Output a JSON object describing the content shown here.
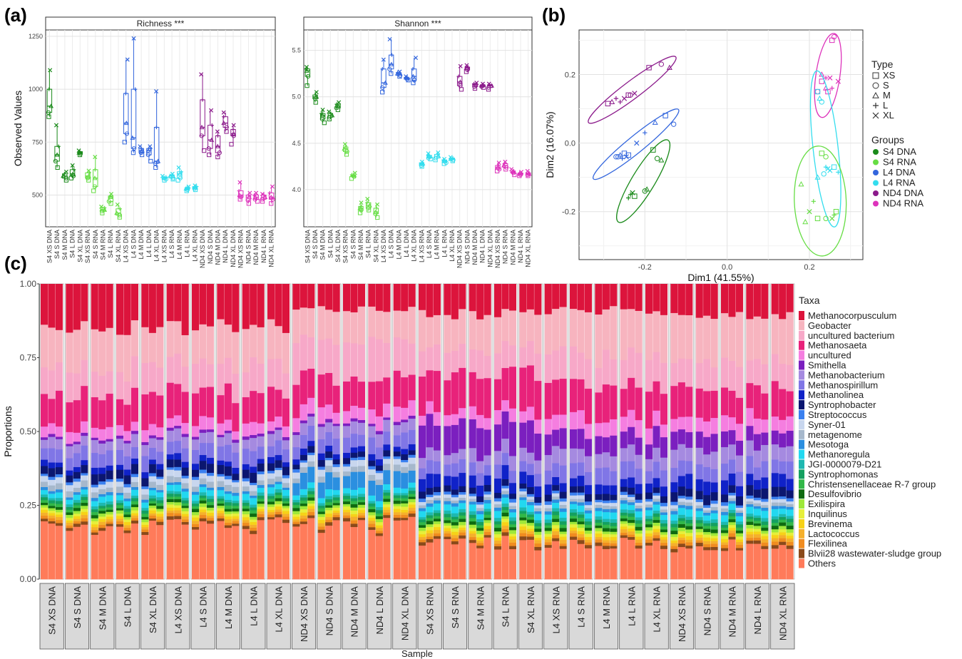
{
  "panel_labels": [
    "(a)",
    "(b)",
    "(c)"
  ],
  "colors": {
    "S4 DNA": "#1a8a1a",
    "S4 RNA": "#66dd44",
    "L4 DNA": "#3366dd",
    "L4 RNA": "#33ddee",
    "ND4 DNA": "#8b1a8b",
    "ND4 RNA": "#dd33bb"
  },
  "chart_data": [
    {
      "type": "box",
      "title": "Richness ***",
      "ylabel": "Observed Values",
      "ylim": [
        350,
        1280
      ],
      "yticks": [
        500,
        750,
        1000,
        1250
      ],
      "categories": [
        "S4 XS DNA",
        "S4 S DNA",
        "S4 M DNA",
        "S4 L DNA",
        "S4 XL DNA",
        "S4 XS RNA",
        "S4 S RNA",
        "S4 M RNA",
        "S4 L RNA",
        "S4 XL RNA",
        "L4 XS DNA",
        "L4 S DNA",
        "L4 M DNA",
        "L4 L DNA",
        "L4 XL DNA",
        "L4 XS RNA",
        "L4 S RNA",
        "L4 M RNA",
        "L4 L RNA",
        "L4 XL RNA",
        "ND4 XS DNA",
        "ND4 S DNA",
        "ND4 M DNA",
        "ND4 L DNA",
        "ND4 XL DNA",
        "ND4 XS RNA",
        "ND4 S RNA",
        "ND4 M RNA",
        "ND4 L RNA",
        "ND4 XL RNA"
      ],
      "boxes": [
        [
          870,
          890,
          920,
          1000,
          1090
        ],
        [
          630,
          660,
          690,
          730,
          830
        ],
        [
          570,
          580,
          590,
          600,
          610
        ],
        [
          580,
          590,
          600,
          620,
          640
        ],
        [
          690,
          695,
          700,
          705,
          710
        ],
        [
          570,
          580,
          590,
          605,
          615
        ],
        [
          520,
          540,
          580,
          620,
          680
        ],
        [
          415,
          425,
          430,
          440,
          445
        ],
        [
          460,
          470,
          490,
          495,
          505
        ],
        [
          395,
          405,
          415,
          435,
          455
        ],
        [
          750,
          790,
          840,
          980,
          1140
        ],
        [
          700,
          720,
          770,
          1000,
          1240
        ],
        [
          690,
          700,
          710,
          720,
          730
        ],
        [
          660,
          690,
          710,
          720,
          730
        ],
        [
          630,
          650,
          660,
          820,
          990
        ],
        [
          570,
          575,
          580,
          585,
          590
        ],
        [
          575,
          580,
          590,
          595,
          600
        ],
        [
          570,
          580,
          600,
          610,
          630
        ],
        [
          520,
          525,
          530,
          535,
          540
        ],
        [
          525,
          530,
          535,
          540,
          545
        ],
        [
          710,
          780,
          820,
          950,
          1070
        ],
        [
          690,
          720,
          760,
          830,
          900
        ],
        [
          680,
          700,
          730,
          780,
          800
        ],
        [
          800,
          820,
          840,
          870,
          890
        ],
        [
          740,
          780,
          790,
          810,
          830
        ],
        [
          480,
          490,
          500,
          520,
          560
        ],
        [
          460,
          475,
          490,
          500,
          510
        ],
        [
          470,
          480,
          490,
          500,
          510
        ],
        [
          470,
          480,
          490,
          500,
          505
        ],
        [
          460,
          480,
          490,
          510,
          540
        ]
      ],
      "groups": [
        "S4 DNA",
        "S4 DNA",
        "S4 DNA",
        "S4 DNA",
        "S4 DNA",
        "S4 RNA",
        "S4 RNA",
        "S4 RNA",
        "S4 RNA",
        "S4 RNA",
        "L4 DNA",
        "L4 DNA",
        "L4 DNA",
        "L4 DNA",
        "L4 DNA",
        "L4 RNA",
        "L4 RNA",
        "L4 RNA",
        "L4 RNA",
        "L4 RNA",
        "ND4 DNA",
        "ND4 DNA",
        "ND4 DNA",
        "ND4 DNA",
        "ND4 DNA",
        "ND4 RNA",
        "ND4 RNA",
        "ND4 RNA",
        "ND4 RNA",
        "ND4 RNA"
      ]
    },
    {
      "type": "box",
      "title": "Shannon ***",
      "ylim": [
        3.6,
        5.72
      ],
      "yticks": [
        4.0,
        4.5,
        5.0,
        5.5
      ],
      "boxes": [
        [
          5.12,
          5.22,
          5.28,
          5.3,
          5.32
        ],
        [
          4.94,
          4.98,
          5.0,
          5.02,
          5.05
        ],
        [
          4.72,
          4.76,
          4.8,
          4.82,
          4.86
        ],
        [
          4.76,
          4.78,
          4.8,
          4.82,
          4.84
        ],
        [
          4.86,
          4.88,
          4.9,
          4.92,
          4.94
        ],
        [
          4.38,
          4.41,
          4.44,
          4.46,
          4.49
        ],
        [
          4.12,
          4.14,
          4.15,
          4.16,
          4.18
        ],
        [
          3.75,
          3.78,
          3.8,
          3.82,
          3.86
        ],
        [
          3.78,
          3.8,
          3.83,
          3.86,
          3.9
        ],
        [
          3.7,
          3.74,
          3.76,
          3.8,
          3.84
        ],
        [
          5.05,
          5.1,
          5.15,
          5.3,
          5.4
        ],
        [
          5.25,
          5.3,
          5.35,
          5.45,
          5.62
        ],
        [
          5.22,
          5.23,
          5.25,
          5.26,
          5.27
        ],
        [
          5.18,
          5.19,
          5.2,
          5.21,
          5.22
        ],
        [
          5.15,
          5.18,
          5.22,
          5.3,
          5.42
        ],
        [
          4.25,
          4.26,
          4.28,
          4.29,
          4.3
        ],
        [
          4.33,
          4.34,
          4.36,
          4.37,
          4.39
        ],
        [
          4.32,
          4.34,
          4.36,
          4.38,
          4.4
        ],
        [
          4.28,
          4.29,
          4.31,
          4.32,
          4.33
        ],
        [
          4.31,
          4.32,
          4.33,
          4.34,
          4.35
        ],
        [
          5.08,
          5.12,
          5.16,
          5.22,
          5.33
        ],
        [
          5.27,
          5.29,
          5.31,
          5.32,
          5.34
        ],
        [
          5.09,
          5.11,
          5.13,
          5.14,
          5.15
        ],
        [
          5.1,
          5.11,
          5.12,
          5.13,
          5.14
        ],
        [
          5.08,
          5.1,
          5.12,
          5.13,
          5.14
        ],
        [
          4.2,
          4.22,
          4.24,
          4.26,
          4.29
        ],
        [
          4.22,
          4.24,
          4.26,
          4.28,
          4.3
        ],
        [
          4.16,
          4.18,
          4.19,
          4.2,
          4.22
        ],
        [
          4.15,
          4.16,
          4.17,
          4.18,
          4.19
        ],
        [
          4.15,
          4.16,
          4.17,
          4.18,
          4.2
        ]
      ]
    },
    {
      "type": "scatter",
      "xlabel": "Dim1 (41.55%)",
      "ylabel": "Dim2 (16.07%)",
      "xlim": [
        -0.36,
        0.33
      ],
      "ylim": [
        -0.34,
        0.33
      ],
      "xticks": [
        -0.2,
        0.0,
        0.2
      ],
      "yticks": [
        -0.2,
        0.0,
        0.2
      ],
      "legend_type_title": "Type",
      "legend_type": [
        "XS",
        "S",
        "M",
        "L",
        "XL"
      ],
      "legend_group_title": "Groups",
      "legend_group": [
        "S4 DNA",
        "S4 RNA",
        "L4 DNA",
        "L4 RNA",
        "ND4 DNA",
        "ND4 RNA"
      ],
      "clusters": [
        {
          "group": "ND4 DNA",
          "cx": -0.245,
          "cy": 0.14,
          "points": [
            [
              -0.19,
              0.22
            ],
            [
              -0.16,
              0.23
            ],
            [
              -0.14,
              0.22
            ],
            [
              -0.26,
              0.12
            ],
            [
              -0.25,
              0.13
            ],
            [
              -0.24,
              0.14
            ],
            [
              -0.235,
              0.14
            ],
            [
              -0.28,
              0.12
            ],
            [
              -0.27,
              0.13
            ],
            [
              -0.225,
              0.145
            ],
            [
              -0.29,
              0.115
            ]
          ]
        },
        {
          "group": "L4 DNA",
          "cx": -0.235,
          "cy": -0.01,
          "points": [
            [
              -0.15,
              0.08
            ],
            [
              -0.13,
              0.055
            ],
            [
              -0.175,
              0.06
            ],
            [
              -0.2,
              0.03
            ],
            [
              -0.22,
              0.0
            ],
            [
              -0.25,
              -0.03
            ],
            [
              -0.27,
              -0.04
            ],
            [
              -0.26,
              -0.035
            ],
            [
              -0.255,
              -0.045
            ],
            [
              -0.245,
              -0.04
            ],
            [
              -0.24,
              -0.035
            ],
            [
              -0.265,
              -0.04
            ]
          ]
        },
        {
          "group": "S4 DNA",
          "cx": -0.205,
          "cy": -0.12,
          "points": [
            [
              -0.18,
              -0.02
            ],
            [
              -0.17,
              -0.045
            ],
            [
              -0.16,
              -0.05
            ],
            [
              -0.235,
              -0.15
            ],
            [
              -0.23,
              -0.145
            ],
            [
              -0.225,
              -0.155
            ],
            [
              -0.2,
              -0.14
            ],
            [
              -0.195,
              -0.135
            ],
            [
              -0.24,
              -0.16
            ]
          ]
        },
        {
          "group": "ND4 RNA",
          "cx": 0.24,
          "cy": 0.2,
          "points": [
            [
              0.255,
              0.3
            ],
            [
              0.26,
              0.31
            ],
            [
              0.23,
              0.2
            ],
            [
              0.24,
              0.19
            ],
            [
              0.25,
              0.19
            ],
            [
              0.23,
              0.18
            ],
            [
              0.22,
              0.15
            ],
            [
              0.24,
              0.16
            ],
            [
              0.255,
              0.16
            ],
            [
              0.27,
              0.18
            ],
            [
              0.245,
              0.15
            ]
          ]
        },
        {
          "group": "L4 RNA",
          "cx": 0.235,
          "cy": 0.02,
          "points": [
            [
              0.22,
              0.15
            ],
            [
              0.23,
              0.12
            ],
            [
              0.225,
              0.13
            ],
            [
              0.24,
              -0.07
            ],
            [
              0.25,
              -0.08
            ],
            [
              0.26,
              -0.07
            ],
            [
              0.235,
              -0.09
            ],
            [
              0.22,
              -0.1
            ],
            [
              0.27,
              -0.085
            ],
            [
              0.245,
              -0.075
            ]
          ]
        },
        {
          "group": "S4 RNA",
          "cx": 0.225,
          "cy": -0.13,
          "points": [
            [
              0.23,
              -0.03
            ],
            [
              0.24,
              -0.04
            ],
            [
              0.18,
              -0.12
            ],
            [
              0.21,
              -0.17
            ],
            [
              0.2,
              -0.2
            ],
            [
              0.22,
              -0.22
            ],
            [
              0.24,
              -0.22
            ],
            [
              0.19,
              -0.23
            ],
            [
              0.26,
              -0.21
            ],
            [
              0.255,
              -0.22
            ],
            [
              0.265,
              -0.2
            ]
          ]
        }
      ]
    },
    {
      "type": "stacked-bar",
      "xlabel": "Sample",
      "ylabel": "Proportions",
      "ylim": [
        0,
        1
      ],
      "yticks": [
        "0.00",
        "0.25",
        "0.50",
        "0.75",
        "1.00"
      ],
      "legend_title": "Taxa",
      "categories": [
        "S4 XS DNA",
        "S4 S DNA",
        "S4 M DNA",
        "S4 L DNA",
        "S4 XL DNA",
        "L4 XS DNA",
        "L4 S DNA",
        "L4 M DNA",
        "L4 L DNA",
        "L4 XL DNA",
        "ND4 XS DNA",
        "ND4 S DNA",
        "ND4 M DNA",
        "ND4 L DNA",
        "ND4 XL DNA",
        "S4 XS RNA",
        "S4 S RNA",
        "S4 M RNA",
        "S4 L RNA",
        "S4 XL RNA",
        "L4 XS RNA",
        "L4 S RNA",
        "L4 M RNA",
        "L4 L RNA",
        "L4 XL RNA",
        "ND4 XS RNA",
        "ND4 S RNA",
        "ND4 M RNA",
        "ND4 L RNA",
        "ND4 XL RNA"
      ],
      "taxa": [
        {
          "name": "Methanocorpusculum",
          "color": "#dc143c"
        },
        {
          "name": "Geobacter",
          "color": "#f7b4bf"
        },
        {
          "name": "uncultured bacterium",
          "color": "#f7a8c8"
        },
        {
          "name": "Methanosaeta",
          "color": "#e8227a"
        },
        {
          "name": "uncultured",
          "color": "#f57ee0"
        },
        {
          "name": "Smithella",
          "color": "#7b1fbf"
        },
        {
          "name": "Methanobacterium",
          "color": "#a58ae0"
        },
        {
          "name": "Methanospirillum",
          "color": "#8076e6"
        },
        {
          "name": "Methanolinea",
          "color": "#1022c8"
        },
        {
          "name": "Syntrophobacter",
          "color": "#0b1670"
        },
        {
          "name": "Streptococcus",
          "color": "#3a80f0"
        },
        {
          "name": "Syner-01",
          "color": "#c8d6ee"
        },
        {
          "name": "metagenome",
          "color": "#a6b8cc"
        },
        {
          "name": "Mesotoga",
          "color": "#2b8fe0"
        },
        {
          "name": "Methanoregula",
          "color": "#22d8f0"
        },
        {
          "name": "JGI-0000079-D21",
          "color": "#1eb8b0"
        },
        {
          "name": "Syntrophomonas",
          "color": "#14a060"
        },
        {
          "name": "Christensenellaceae R-7 group",
          "color": "#32b848"
        },
        {
          "name": "Desulfovibrio",
          "color": "#0e6a10"
        },
        {
          "name": "Exilispira",
          "color": "#9ee83a"
        },
        {
          "name": "Inquilinus",
          "color": "#e6ef3a"
        },
        {
          "name": "Brevinema",
          "color": "#f7d218"
        },
        {
          "name": "Lactococcus",
          "color": "#f5b02c"
        },
        {
          "name": "Flexilinea",
          "color": "#f08c20"
        },
        {
          "name": "Blvii28 wastewater-sludge group",
          "color": "#8b4a1a"
        },
        {
          "name": "Others",
          "color": "#ff7b5a"
        }
      ],
      "profiles": {
        "DNA": [
          0.16,
          0.14,
          0.1,
          0.11,
          0.04,
          0.01,
          0.04,
          0.05,
          0.02,
          0.03,
          0.01,
          0.02,
          0.02,
          0.01,
          0.02,
          0.01,
          0.01,
          0.01,
          0.01,
          0.01,
          0.01,
          0.01,
          0.01,
          0.01,
          0.01,
          0.19
        ],
        "DNA_ND": [
          0.09,
          0.12,
          0.13,
          0.11,
          0.05,
          0.01,
          0.04,
          0.05,
          0.02,
          0.02,
          0.01,
          0.02,
          0.02,
          0.05,
          0.02,
          0.01,
          0.01,
          0.01,
          0.01,
          0.01,
          0.01,
          0.01,
          0.01,
          0.01,
          0.01,
          0.19
        ],
        "RNA_S4": [
          0.1,
          0.12,
          0.08,
          0.12,
          0.04,
          0.1,
          0.04,
          0.04,
          0.04,
          0.02,
          0.01,
          0.01,
          0.01,
          0.01,
          0.02,
          0.01,
          0.01,
          0.01,
          0.01,
          0.01,
          0.01,
          0.01,
          0.01,
          0.01,
          0.01,
          0.12
        ],
        "RNA_L4": [
          0.09,
          0.15,
          0.1,
          0.11,
          0.05,
          0.06,
          0.05,
          0.05,
          0.03,
          0.02,
          0.01,
          0.01,
          0.01,
          0.01,
          0.02,
          0.01,
          0.01,
          0.01,
          0.01,
          0.01,
          0.01,
          0.01,
          0.01,
          0.01,
          0.01,
          0.12
        ],
        "RNA_ND": [
          0.1,
          0.16,
          0.09,
          0.1,
          0.05,
          0.05,
          0.05,
          0.05,
          0.04,
          0.03,
          0.01,
          0.01,
          0.01,
          0.01,
          0.02,
          0.01,
          0.01,
          0.01,
          0.01,
          0.01,
          0.01,
          0.01,
          0.01,
          0.01,
          0.01,
          0.11
        ]
      }
    }
  ]
}
